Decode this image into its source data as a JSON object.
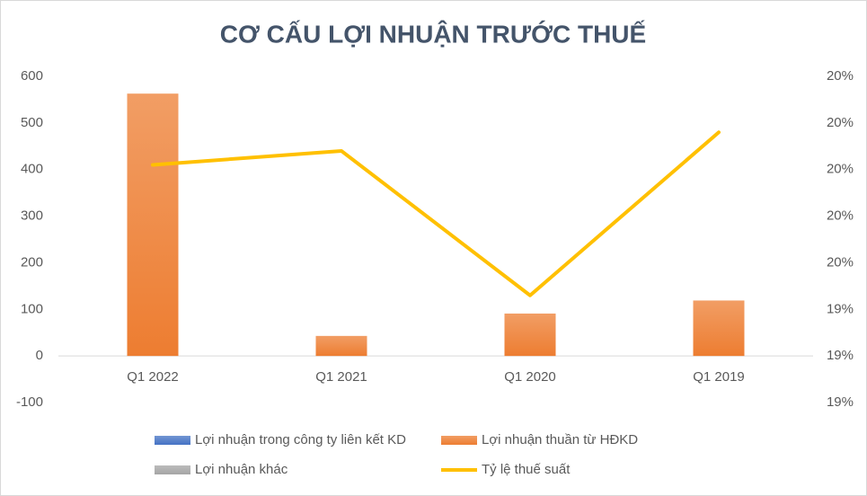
{
  "chart_data": {
    "type": "bar",
    "title": "CƠ CẤU LỢI NHUẬN TRƯỚC THUẾ",
    "categories": [
      "Q1 2022",
      "Q1 2021",
      "Q1 2020",
      "Q1 2019"
    ],
    "series": [
      {
        "name": "Lợi nhuận trong công ty liên kết KD",
        "color": "#4472c4",
        "type": "bar",
        "values": [
          0,
          0,
          0,
          0
        ]
      },
      {
        "name": "Lợi nhuận thuần từ HĐKD",
        "color": "#ed7d31",
        "type": "bar",
        "values": [
          563,
          43,
          91,
          119
        ]
      },
      {
        "name": "Lợi nhuận khác",
        "color": "#a5a5a5",
        "type": "bar",
        "values": [
          0,
          0,
          0,
          0
        ]
      },
      {
        "name": "Tỷ lệ thuế suất",
        "color": "#ffc000",
        "type": "line",
        "axis": "y2",
        "values": [
          19.76,
          19.79,
          19.48,
          19.83
        ]
      }
    ],
    "ylim": [
      -100,
      600
    ],
    "yticks": [
      600,
      500,
      400,
      300,
      200,
      100,
      0,
      -100
    ],
    "y2lim": [
      19.25,
      19.95
    ],
    "y2ticks": [
      {
        "value": 19.95,
        "label": "20%"
      },
      {
        "value": 19.85,
        "label": "20%"
      },
      {
        "value": 19.75,
        "label": "20%"
      },
      {
        "value": 19.65,
        "label": "20%"
      },
      {
        "value": 19.55,
        "label": "20%"
      },
      {
        "value": 19.45,
        "label": "19%"
      },
      {
        "value": 19.35,
        "label": "19%"
      },
      {
        "value": 19.25,
        "label": "19%"
      }
    ],
    "grid": false,
    "legend": "bottom"
  }
}
